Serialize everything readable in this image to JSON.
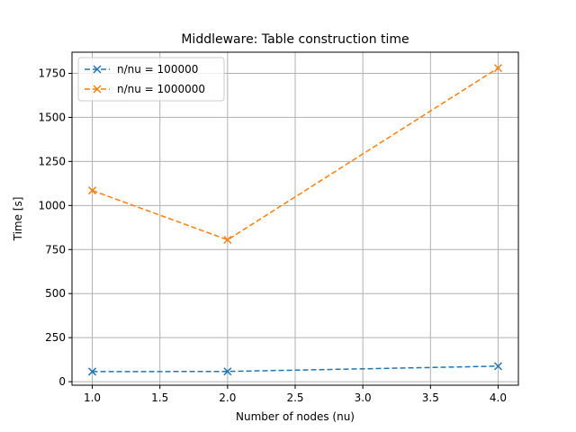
{
  "chart_data": {
    "type": "line",
    "title": "Middleware: Table construction time",
    "xlabel": "Number of nodes (nu)",
    "ylabel": "Time [s]",
    "xlim": [
      0.85,
      4.15
    ],
    "ylim": [
      -20,
      1870
    ],
    "xticks": [
      1.0,
      1.5,
      2.0,
      2.5,
      3.0,
      3.5,
      4.0
    ],
    "yticks": [
      0,
      250,
      500,
      750,
      1000,
      1250,
      1500,
      1750
    ],
    "xtick_labels": [
      "1.0",
      "1.5",
      "2.0",
      "2.5",
      "3.0",
      "3.5",
      "4.0"
    ],
    "ytick_labels": [
      "0",
      "250",
      "500",
      "750",
      "1000",
      "1250",
      "1500",
      "1750"
    ],
    "grid": true,
    "legend_position": "top-left",
    "series": [
      {
        "name": "n/nu = 100000",
        "color": "#1f77b4",
        "marker": "x",
        "linestyle": "dashed",
        "x": [
          1,
          2,
          4
        ],
        "values": [
          57,
          58,
          88
        ]
      },
      {
        "name": "n/nu = 1000000",
        "color": "#ff7f0e",
        "marker": "x",
        "linestyle": "dashed",
        "x": [
          1,
          2,
          4
        ],
        "values": [
          1085,
          805,
          1780
        ]
      }
    ]
  }
}
